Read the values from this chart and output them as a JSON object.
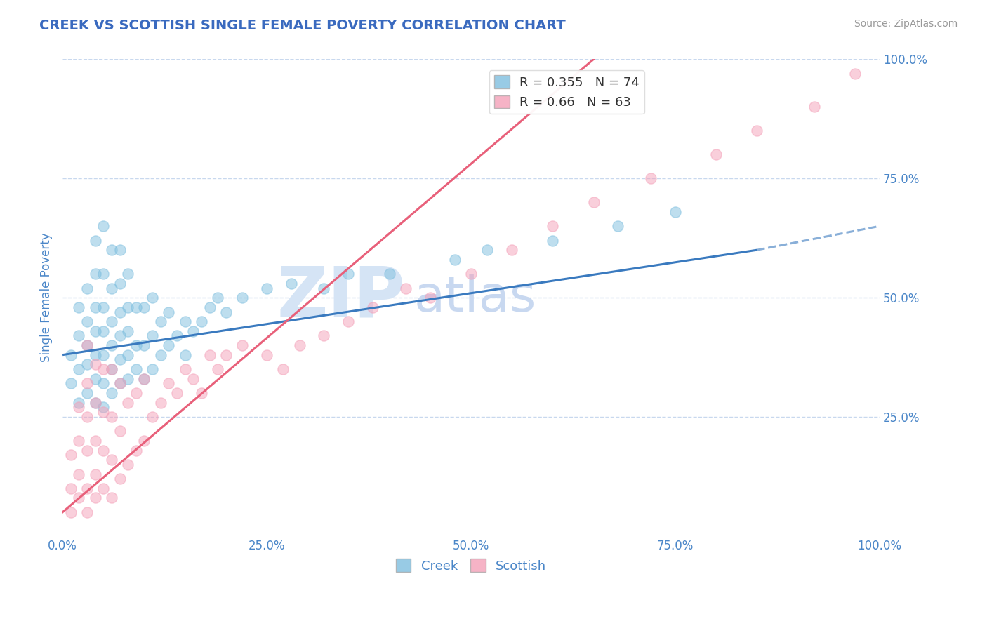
{
  "title": "CREEK VS SCOTTISH SINGLE FEMALE POVERTY CORRELATION CHART",
  "source_text": "Source: ZipAtlas.com",
  "ylabel": "Single Female Poverty",
  "creek_R": 0.355,
  "creek_N": 74,
  "scottish_R": 0.66,
  "scottish_N": 63,
  "creek_color": "#7fbfdf",
  "scottish_color": "#f4a0b8",
  "creek_line_color": "#3a7abf",
  "scottish_line_color": "#e8607a",
  "title_color": "#3a6abf",
  "axis_color": "#4a86c8",
  "grid_color": "#c8d8ee",
  "watermark_zip_color": "#d5e4f5",
  "watermark_atlas_color": "#c8d8f0",
  "creek_scatter_x": [
    0.01,
    0.01,
    0.02,
    0.02,
    0.02,
    0.02,
    0.03,
    0.03,
    0.03,
    0.03,
    0.03,
    0.04,
    0.04,
    0.04,
    0.04,
    0.04,
    0.04,
    0.04,
    0.05,
    0.05,
    0.05,
    0.05,
    0.05,
    0.05,
    0.05,
    0.06,
    0.06,
    0.06,
    0.06,
    0.06,
    0.06,
    0.07,
    0.07,
    0.07,
    0.07,
    0.07,
    0.07,
    0.08,
    0.08,
    0.08,
    0.08,
    0.08,
    0.09,
    0.09,
    0.09,
    0.1,
    0.1,
    0.1,
    0.11,
    0.11,
    0.11,
    0.12,
    0.12,
    0.13,
    0.13,
    0.14,
    0.15,
    0.15,
    0.16,
    0.17,
    0.18,
    0.19,
    0.2,
    0.22,
    0.25,
    0.28,
    0.32,
    0.35,
    0.4,
    0.48,
    0.52,
    0.6,
    0.68,
    0.75
  ],
  "creek_scatter_y": [
    0.32,
    0.38,
    0.28,
    0.35,
    0.42,
    0.48,
    0.3,
    0.36,
    0.4,
    0.45,
    0.52,
    0.28,
    0.33,
    0.38,
    0.43,
    0.48,
    0.55,
    0.62,
    0.27,
    0.32,
    0.38,
    0.43,
    0.48,
    0.55,
    0.65,
    0.3,
    0.35,
    0.4,
    0.45,
    0.52,
    0.6,
    0.32,
    0.37,
    0.42,
    0.47,
    0.53,
    0.6,
    0.33,
    0.38,
    0.43,
    0.48,
    0.55,
    0.35,
    0.4,
    0.48,
    0.33,
    0.4,
    0.48,
    0.35,
    0.42,
    0.5,
    0.38,
    0.45,
    0.4,
    0.47,
    0.42,
    0.38,
    0.45,
    0.43,
    0.45,
    0.48,
    0.5,
    0.47,
    0.5,
    0.52,
    0.53,
    0.52,
    0.55,
    0.55,
    0.58,
    0.6,
    0.62,
    0.65,
    0.68
  ],
  "scottish_scatter_x": [
    0.01,
    0.01,
    0.01,
    0.02,
    0.02,
    0.02,
    0.02,
    0.03,
    0.03,
    0.03,
    0.03,
    0.03,
    0.03,
    0.04,
    0.04,
    0.04,
    0.04,
    0.04,
    0.05,
    0.05,
    0.05,
    0.05,
    0.06,
    0.06,
    0.06,
    0.06,
    0.07,
    0.07,
    0.07,
    0.08,
    0.08,
    0.09,
    0.09,
    0.1,
    0.1,
    0.11,
    0.12,
    0.13,
    0.14,
    0.15,
    0.16,
    0.17,
    0.18,
    0.19,
    0.2,
    0.22,
    0.25,
    0.27,
    0.29,
    0.32,
    0.35,
    0.38,
    0.42,
    0.45,
    0.5,
    0.55,
    0.6,
    0.65,
    0.72,
    0.8,
    0.85,
    0.92,
    0.97
  ],
  "scottish_scatter_y": [
    0.05,
    0.1,
    0.17,
    0.08,
    0.13,
    0.2,
    0.27,
    0.05,
    0.1,
    0.18,
    0.25,
    0.32,
    0.4,
    0.08,
    0.13,
    0.2,
    0.28,
    0.36,
    0.1,
    0.18,
    0.26,
    0.35,
    0.08,
    0.16,
    0.25,
    0.35,
    0.12,
    0.22,
    0.32,
    0.15,
    0.28,
    0.18,
    0.3,
    0.2,
    0.33,
    0.25,
    0.28,
    0.32,
    0.3,
    0.35,
    0.33,
    0.3,
    0.38,
    0.35,
    0.38,
    0.4,
    0.38,
    0.35,
    0.4,
    0.42,
    0.45,
    0.48,
    0.52,
    0.5,
    0.55,
    0.6,
    0.65,
    0.7,
    0.75,
    0.8,
    0.85,
    0.9,
    0.97
  ],
  "creek_line_x0": 0.0,
  "creek_line_y0": 0.38,
  "creek_line_x1": 0.85,
  "creek_line_y1": 0.6,
  "creek_line_dashed_x0": 0.85,
  "creek_line_dashed_y0": 0.6,
  "creek_line_dashed_x1": 1.0,
  "creek_line_dashed_y1": 0.65,
  "scottish_line_x0": 0.0,
  "scottish_line_y0": 0.05,
  "scottish_line_x1": 0.65,
  "scottish_line_y1": 1.0,
  "xlim": [
    0.0,
    1.0
  ],
  "ylim": [
    0.0,
    1.0
  ],
  "xticks": [
    0.0,
    0.25,
    0.5,
    0.75,
    1.0
  ],
  "yticks": [
    0.25,
    0.5,
    0.75,
    1.0
  ],
  "xtick_labels": [
    "0.0%",
    "25.0%",
    "50.0%",
    "75.0%",
    "100.0%"
  ],
  "ytick_labels": [
    "25.0%",
    "50.0%",
    "75.0%",
    "100.0%"
  ]
}
